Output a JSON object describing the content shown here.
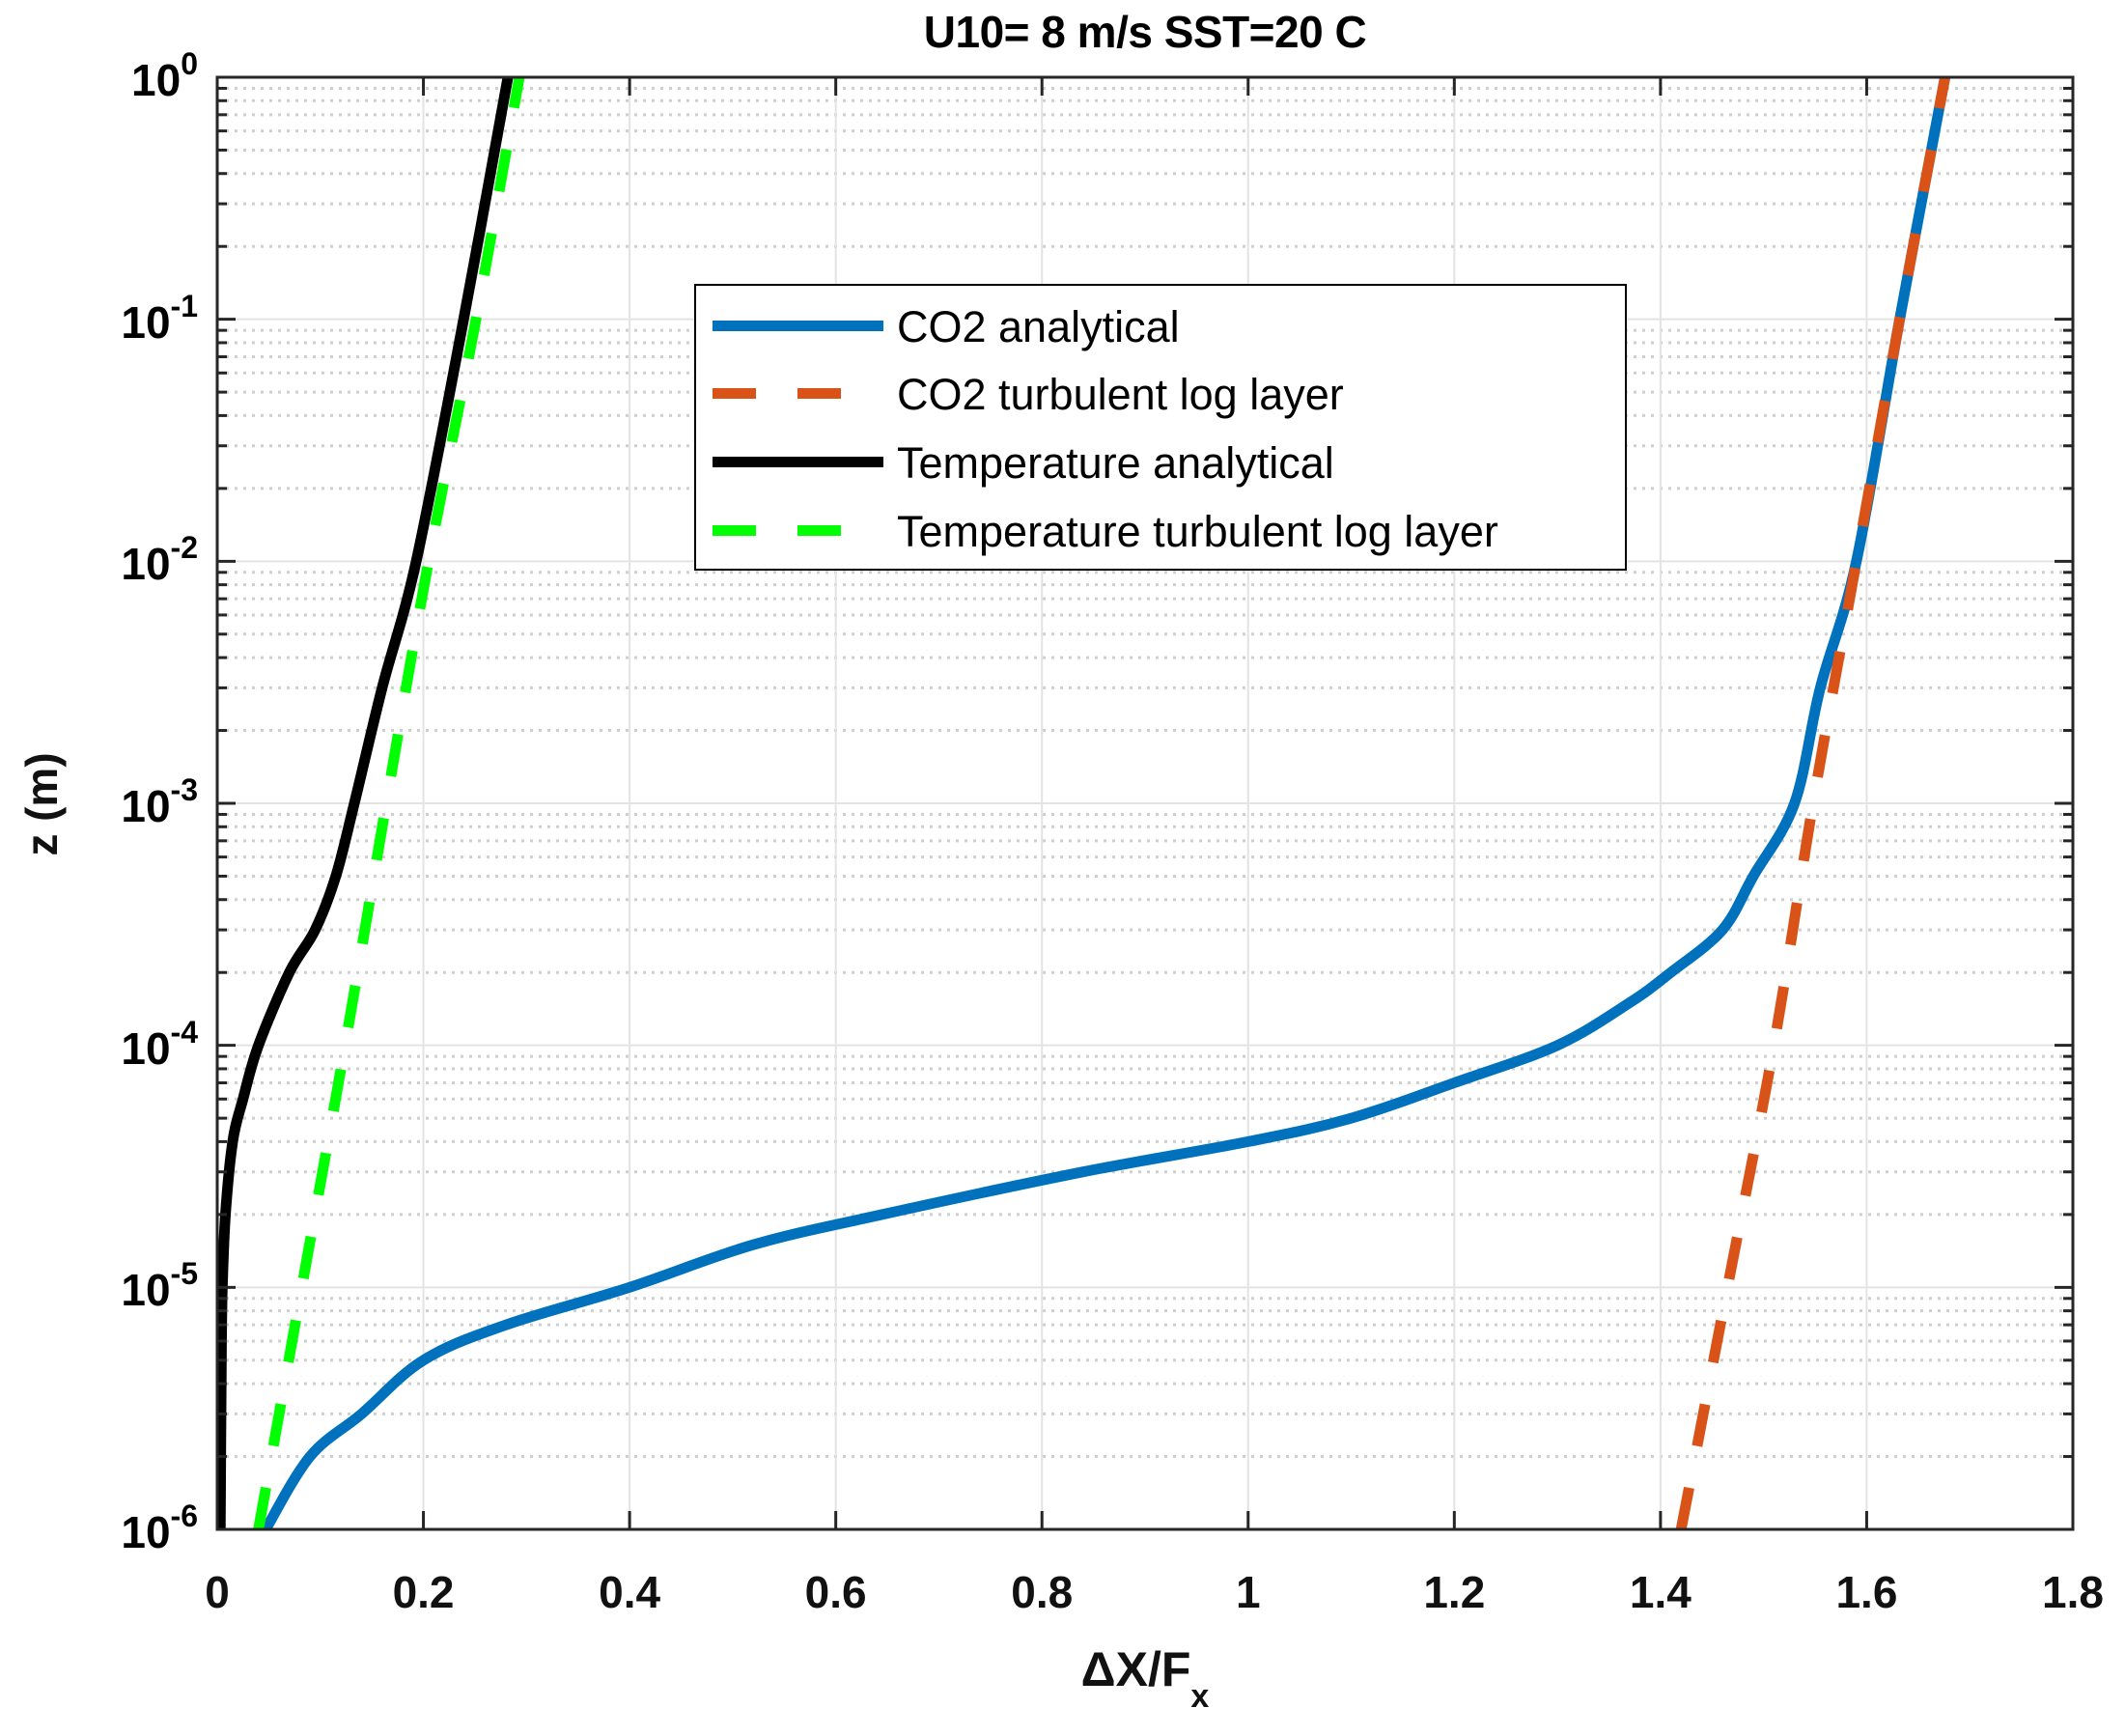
{
  "chart_data": {
    "type": "line",
    "title": "U10= 8 m/s SST=20 C",
    "xlabel": "ΔX/F",
    "xlabel_subscript": "x",
    "ylabel": "z (m)",
    "xlim": [
      0,
      1.8
    ],
    "ylim": [
      1e-06,
      1
    ],
    "yscale": "log",
    "grid": true,
    "minor_grid": true,
    "legend_position": "upper center",
    "x_ticks": [
      "0",
      "0.2",
      "0.4",
      "0.6",
      "0.8",
      "1",
      "1.2",
      "1.4",
      "1.6",
      "1.8"
    ],
    "x_tick_values": [
      0,
      0.2,
      0.4,
      0.6,
      0.8,
      1.0,
      1.2,
      1.4,
      1.6,
      1.8
    ],
    "y_ticks": [
      {
        "base": "10",
        "exp": "0",
        "value": 1
      },
      {
        "base": "10",
        "exp": "-1",
        "value": 0.1
      },
      {
        "base": "10",
        "exp": "-2",
        "value": 0.01
      },
      {
        "base": "10",
        "exp": "-3",
        "value": 0.001
      },
      {
        "base": "10",
        "exp": "-4",
        "value": 0.0001
      },
      {
        "base": "10",
        "exp": "-5",
        "value": 1e-05
      },
      {
        "base": "10",
        "exp": "-6",
        "value": 1e-06
      }
    ],
    "series": [
      {
        "name": "CO2 analytical",
        "color": "#0072BD",
        "style": "solid",
        "points": [
          [
            0.047,
            1e-06
          ],
          [
            0.09,
            2e-06
          ],
          [
            0.14,
            3e-06
          ],
          [
            0.2,
            5e-06
          ],
          [
            0.28,
            7e-06
          ],
          [
            0.4,
            1e-05
          ],
          [
            0.52,
            1.5e-05
          ],
          [
            0.645,
            2e-05
          ],
          [
            0.84,
            3e-05
          ],
          [
            1.0,
            4e-05
          ],
          [
            1.1,
            5e-05
          ],
          [
            1.2,
            7e-05
          ],
          [
            1.3,
            0.0001
          ],
          [
            1.37,
            0.00015
          ],
          [
            1.41,
            0.0002
          ],
          [
            1.46,
            0.0003
          ],
          [
            1.49,
            0.0005
          ],
          [
            1.53,
            0.001
          ],
          [
            1.555,
            0.003
          ],
          [
            1.59,
            0.01
          ],
          [
            1.632,
            0.1
          ],
          [
            1.676,
            1
          ]
        ]
      },
      {
        "name": "CO2 turbulent log layer",
        "color": "#D95319",
        "style": "dashed",
        "points": [
          [
            1.42,
            1e-06
          ],
          [
            1.465,
            1e-05
          ],
          [
            1.51,
            0.0001
          ],
          [
            1.548,
            0.001
          ],
          [
            1.59,
            0.01
          ],
          [
            1.632,
            0.1
          ],
          [
            1.676,
            1
          ]
        ]
      },
      {
        "name": "Temperature analytical",
        "color": "#000000",
        "style": "solid",
        "points": [
          [
            0.003,
            1e-06
          ],
          [
            0.004,
            5e-06
          ],
          [
            0.005,
            1e-05
          ],
          [
            0.008,
            2e-05
          ],
          [
            0.015,
            4e-05
          ],
          [
            0.025,
            6e-05
          ],
          [
            0.04,
            0.0001
          ],
          [
            0.07,
            0.0002
          ],
          [
            0.095,
            0.0003
          ],
          [
            0.115,
            0.0005
          ],
          [
            0.133,
            0.001
          ],
          [
            0.16,
            0.003
          ],
          [
            0.193,
            0.01
          ],
          [
            0.239,
            0.1
          ],
          [
            0.282,
            1
          ]
        ]
      },
      {
        "name": "Temperature turbulent log layer",
        "color": "#00FF00",
        "style": "dashed",
        "points": [
          [
            0.04,
            1e-06
          ],
          [
            0.082,
            1e-05
          ],
          [
            0.124,
            0.0001
          ],
          [
            0.164,
            0.001
          ],
          [
            0.205,
            0.01
          ],
          [
            0.251,
            0.1
          ],
          [
            0.293,
            1
          ]
        ]
      }
    ]
  },
  "legend": {
    "items": [
      {
        "label": "CO2 analytical",
        "color": "#0072BD",
        "style": "solid"
      },
      {
        "label": "CO2 turbulent log layer",
        "color": "#D95319",
        "style": "dashed"
      },
      {
        "label": "Temperature analytical",
        "color": "#000000",
        "style": "solid"
      },
      {
        "label": "Temperature turbulent log layer",
        "color": "#00FF00",
        "style": "dashed"
      }
    ]
  }
}
